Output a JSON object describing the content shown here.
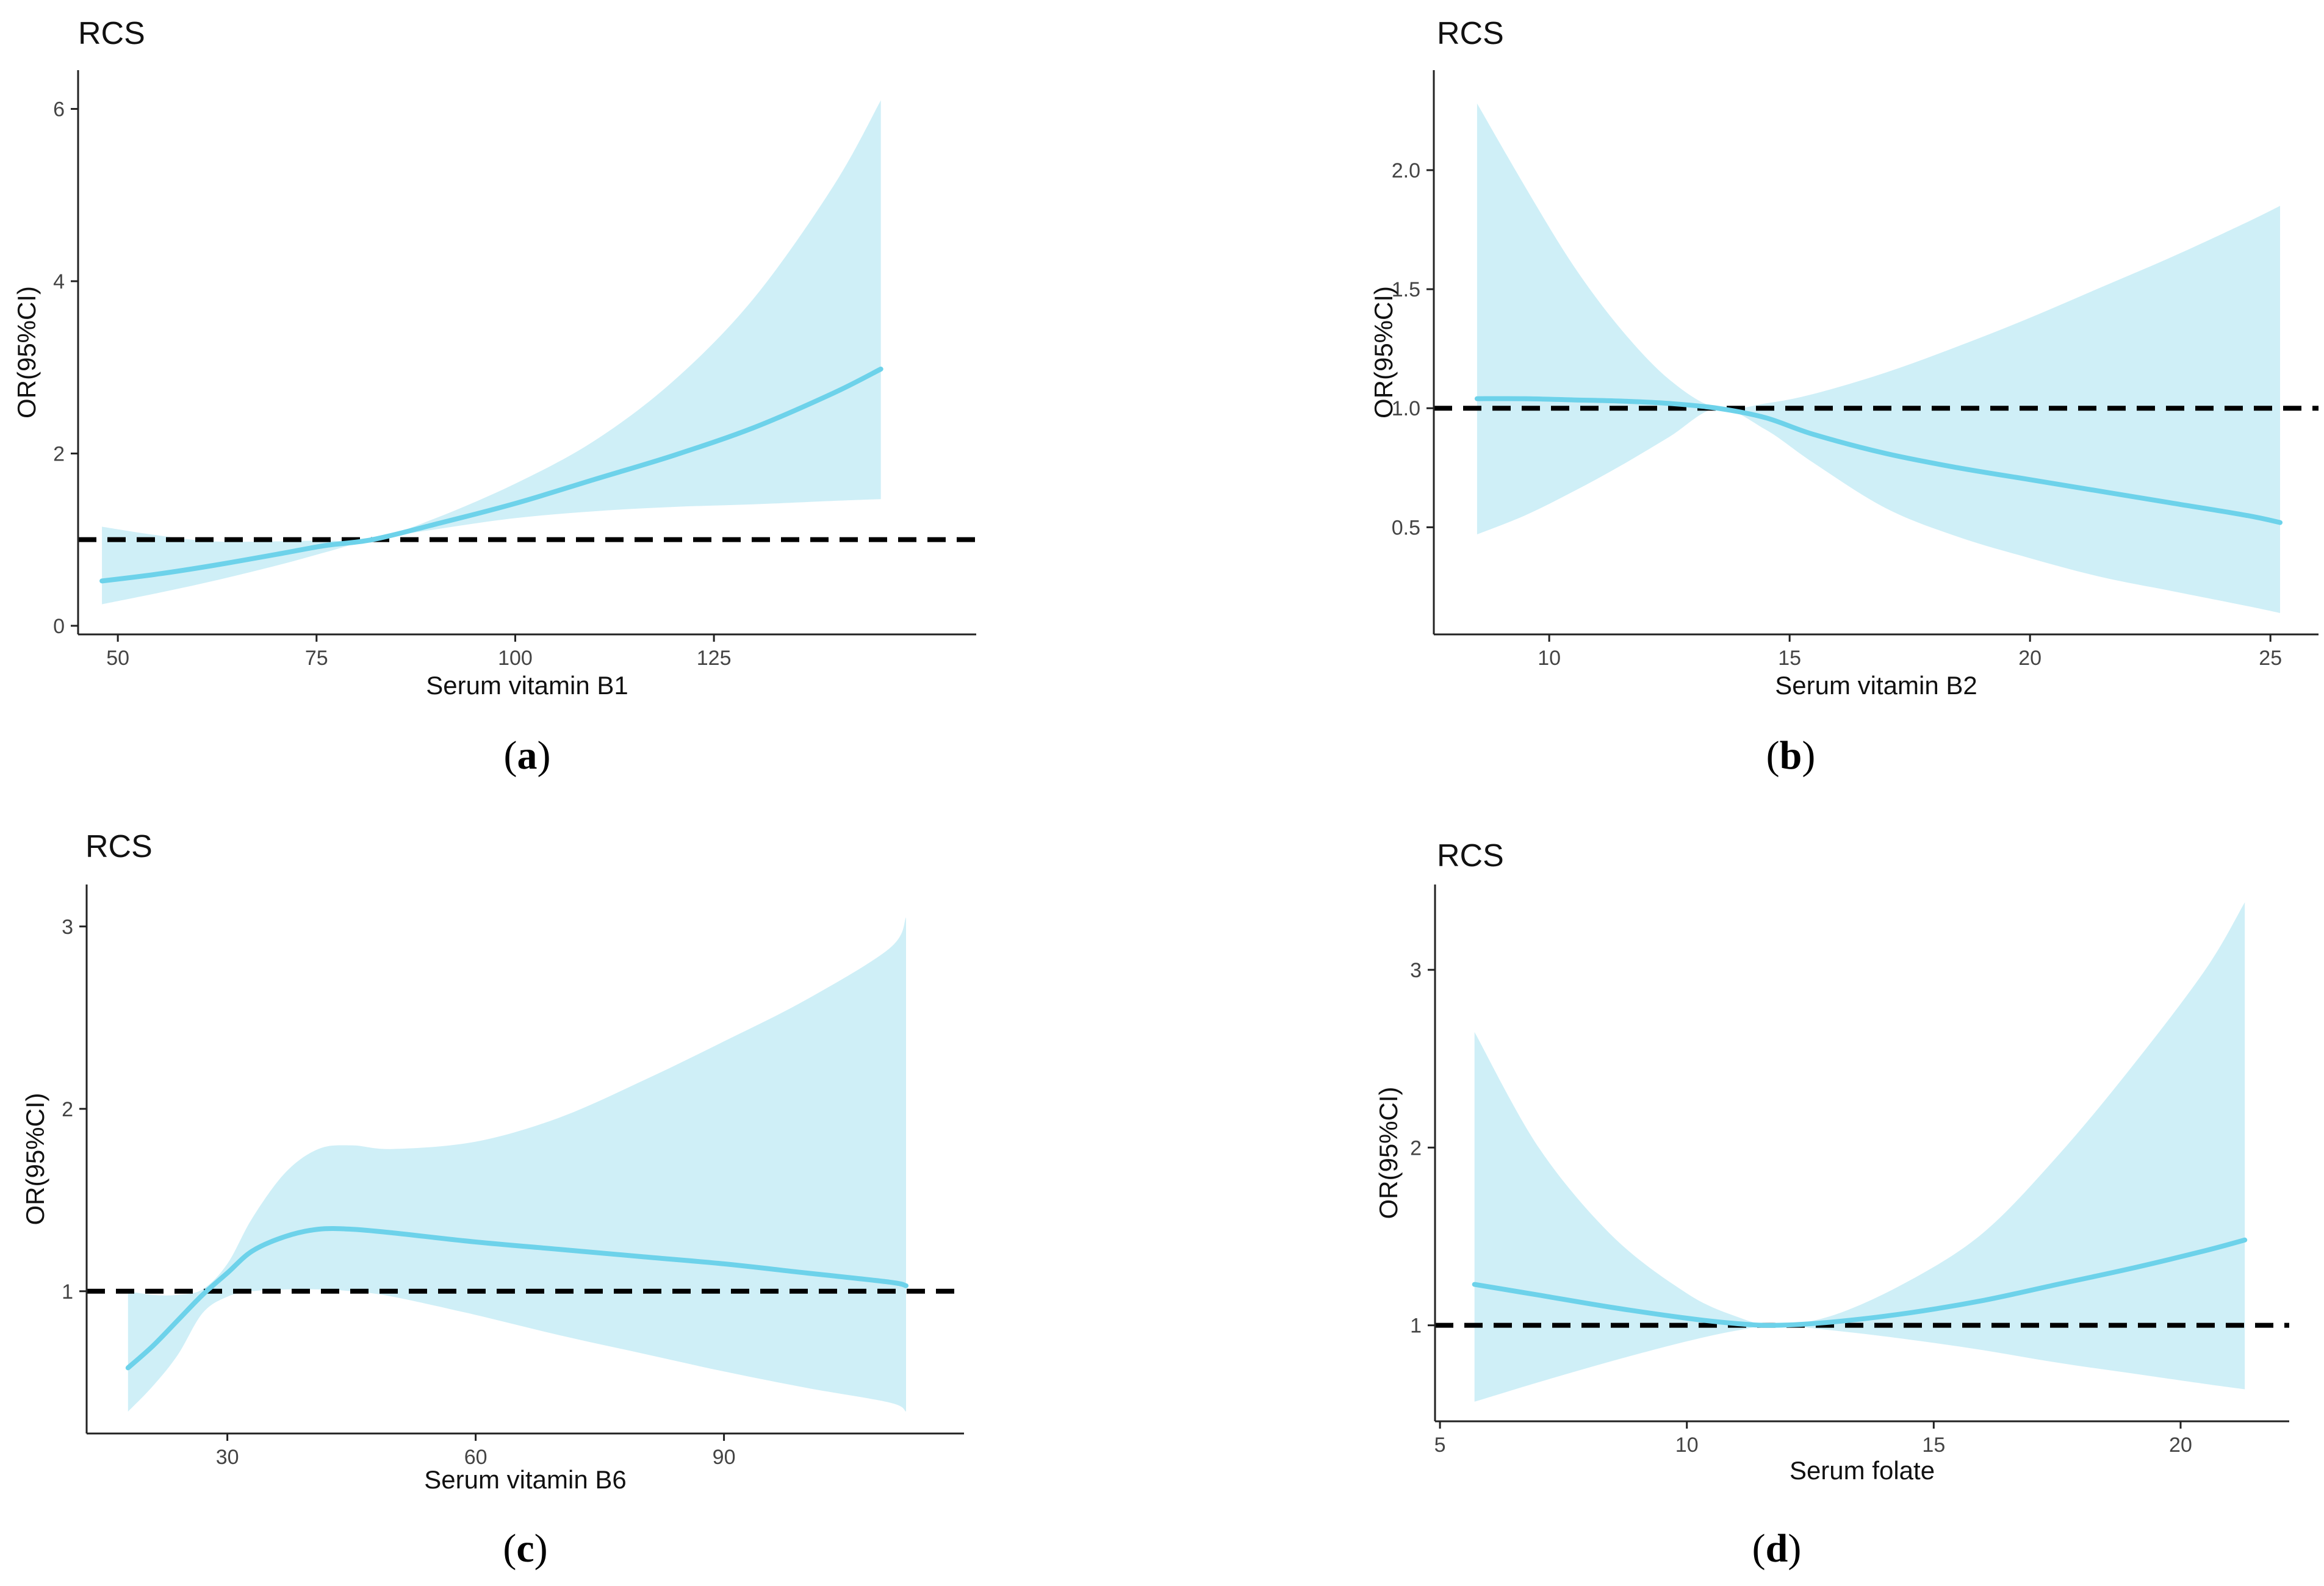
{
  "chart_data": [
    {
      "type": "line",
      "panel_caption": "a",
      "title": "RCS",
      "xlabel": "Serum vitamin B1",
      "ylabel": "OR(95%CI)",
      "xlim": [
        45,
        158
      ],
      "ylim": [
        -0.1,
        6.45
      ],
      "xticks": [
        50,
        75,
        100,
        125
      ],
      "yticks": [
        0,
        2,
        4,
        6
      ],
      "reference_line": 1,
      "colors": {
        "line": "#6dd2ea",
        "band": "#cfeff7",
        "reference": "#000000",
        "axis": "#222222"
      },
      "series": [
        {
          "name": "OR",
          "x": [
            48,
            55,
            62,
            70,
            76,
            82,
            90,
            100,
            110,
            120,
            130,
            140,
            146
          ],
          "y": [
            0.52,
            0.6,
            0.7,
            0.83,
            0.93,
            1.0,
            1.18,
            1.42,
            1.7,
            1.98,
            2.3,
            2.7,
            2.98
          ],
          "lower": [
            0.25,
            0.38,
            0.52,
            0.7,
            0.85,
            1.0,
            1.12,
            1.25,
            1.33,
            1.38,
            1.41,
            1.45,
            1.47
          ],
          "upper": [
            1.15,
            1.05,
            0.98,
            0.98,
            0.99,
            1.0,
            1.25,
            1.65,
            2.15,
            2.85,
            3.8,
            5.1,
            6.1
          ]
        }
      ]
    },
    {
      "type": "line",
      "panel_caption": "b",
      "title": "RCS",
      "xlabel": "Serum vitamin B2",
      "ylabel": "OR(95%CI)",
      "xlim": [
        7.6,
        26
      ],
      "ylim": [
        0.05,
        2.42
      ],
      "xticks": [
        10,
        15,
        20,
        25
      ],
      "yticks": [
        0.5,
        1.0,
        1.5,
        2.0
      ],
      "ytick_labels": [
        "0.5",
        "1.0",
        "1.5",
        "2.0"
      ],
      "reference_line": 1,
      "colors": {
        "line": "#6dd2ea",
        "band": "#cfeff7",
        "reference": "#000000",
        "axis": "#222222"
      },
      "series": [
        {
          "name": "OR",
          "x": [
            8.5,
            9.5,
            10.5,
            11.5,
            12.5,
            13.5,
            14.5,
            15.5,
            17,
            18.5,
            20,
            21.5,
            23,
            24.5,
            25.2
          ],
          "y": [
            1.04,
            1.04,
            1.035,
            1.03,
            1.02,
            1.0,
            0.96,
            0.89,
            0.81,
            0.75,
            0.7,
            0.65,
            0.6,
            0.55,
            0.52
          ],
          "lower": [
            0.47,
            0.55,
            0.65,
            0.76,
            0.88,
            1.0,
            0.91,
            0.77,
            0.58,
            0.46,
            0.37,
            0.29,
            0.23,
            0.17,
            0.14
          ],
          "upper": [
            2.28,
            1.93,
            1.6,
            1.33,
            1.12,
            1.0,
            1.02,
            1.06,
            1.15,
            1.26,
            1.38,
            1.51,
            1.64,
            1.78,
            1.85
          ]
        }
      ]
    },
    {
      "type": "line",
      "panel_caption": "c",
      "title": "RCS",
      "xlabel": "Serum vitamin B6",
      "ylabel": "OR(95%CI)",
      "xlim": [
        13,
        119
      ],
      "ylim": [
        0.22,
        3.23
      ],
      "xticks": [
        30,
        60,
        90
      ],
      "yticks": [
        1,
        2,
        3
      ],
      "reference_line": 1,
      "colors": {
        "line": "#6dd2ea",
        "band": "#cfeff7",
        "reference": "#000000",
        "axis": "#222222"
      },
      "series": [
        {
          "name": "OR",
          "x": [
            18,
            21,
            24,
            27,
            30,
            33,
            37,
            41,
            45,
            50,
            60,
            70,
            80,
            90,
            100,
            110,
            112
          ],
          "y": [
            0.58,
            0.7,
            0.84,
            0.98,
            1.1,
            1.22,
            1.3,
            1.34,
            1.34,
            1.32,
            1.27,
            1.23,
            1.19,
            1.15,
            1.1,
            1.05,
            1.03
          ],
          "lower": [
            0.34,
            0.48,
            0.65,
            0.88,
            0.97,
            1.0,
            1.01,
            1.01,
            1.0,
            0.97,
            0.87,
            0.76,
            0.66,
            0.56,
            0.47,
            0.39,
            0.34
          ],
          "upper": [
            1.0,
            0.98,
            0.98,
            1.01,
            1.15,
            1.4,
            1.65,
            1.78,
            1.8,
            1.78,
            1.82,
            1.95,
            2.15,
            2.37,
            2.6,
            2.88,
            3.05
          ]
        }
      ]
    },
    {
      "type": "line",
      "panel_caption": "d",
      "title": "RCS",
      "xlabel": "Serum folate",
      "ylabel": "OR(95%CI)",
      "xlim": [
        4.9,
        22.2
      ],
      "ylim": [
        0.46,
        3.48
      ],
      "xticks": [
        5,
        10,
        15,
        20
      ],
      "yticks": [
        1,
        2,
        3
      ],
      "reference_line": 1,
      "colors": {
        "line": "#6dd2ea",
        "band": "#cfeff7",
        "reference": "#000000",
        "axis": "#222222"
      },
      "series": [
        {
          "name": "OR",
          "x": [
            5.7,
            7,
            8.5,
            10,
            11,
            11.8,
            13,
            14.5,
            16,
            17.5,
            19,
            20.5,
            21.3
          ],
          "y": [
            1.23,
            1.17,
            1.1,
            1.04,
            1.01,
            1.0,
            1.02,
            1.07,
            1.14,
            1.23,
            1.32,
            1.42,
            1.48
          ],
          "lower": [
            0.57,
            0.68,
            0.8,
            0.91,
            0.97,
            1.0,
            0.97,
            0.92,
            0.86,
            0.79,
            0.73,
            0.67,
            0.64
          ],
          "upper": [
            2.65,
            2.0,
            1.5,
            1.18,
            1.05,
            1.0,
            1.06,
            1.25,
            1.52,
            1.95,
            2.45,
            3.0,
            3.38
          ]
        }
      ]
    }
  ]
}
